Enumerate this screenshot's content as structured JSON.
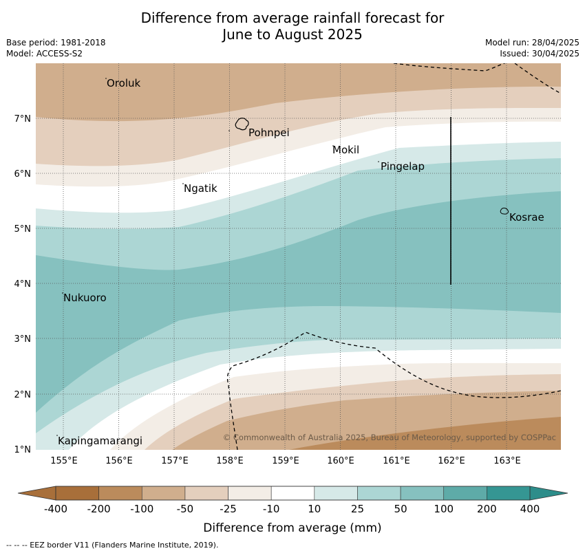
{
  "title_line1": "Difference from average rainfall forecast for",
  "title_line2": "June to August 2025",
  "meta": {
    "base_period": "Base period: 1981-2018",
    "model": "Model: ACCESS-S2",
    "model_run": "Model run: 28/04/2025",
    "issued": "Issued: 30/04/2025"
  },
  "lat_labels": [
    "7°N",
    "6°N",
    "5°N",
    "4°N",
    "3°N",
    "2°N",
    "1°N"
  ],
  "lon_labels": [
    "155°E",
    "156°E",
    "157°E",
    "158°E",
    "159°E",
    "160°E",
    "161°E",
    "162°E",
    "163°E"
  ],
  "places": [
    "Oroluk",
    "Pohnpei",
    "Mokil",
    "Pingelap",
    "Ngatik",
    "Kosrae",
    "Nukuoro",
    "Kapingamarangi"
  ],
  "copyright": "© Commonwealth of Australia 2025, Bureau of Meteorology, supported by COSPPac",
  "legend": {
    "ticks": [
      "-400",
      "-200",
      "-100",
      "-50",
      "-25",
      "-10",
      "10",
      "25",
      "50",
      "100",
      "200",
      "400"
    ],
    "colors": [
      "#a86f3a",
      "#bb8b5c",
      "#d0ae8d",
      "#e4cfbd",
      "#f3ede6",
      "#ffffff",
      "#d6e9e8",
      "#acd6d4",
      "#86c1bf",
      "#5eaba8",
      "#359693"
    ],
    "title": "Difference from average (mm)"
  },
  "footer": "--  --  -- EEZ border V11 (Flanders Marine Institute, 2019)."
}
